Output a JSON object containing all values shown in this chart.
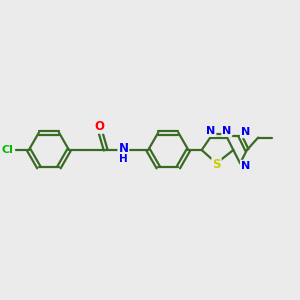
{
  "background_color": "#ebebeb",
  "line_color": "#3a6b25",
  "bond_width": 1.6,
  "atom_colors": {
    "Cl": "#00bb00",
    "O": "#ff0000",
    "N": "#0000ee",
    "S": "#cccc00",
    "C": "#3a6b25",
    "H": "#3a6b25"
  },
  "font_size_atoms": 8.5
}
